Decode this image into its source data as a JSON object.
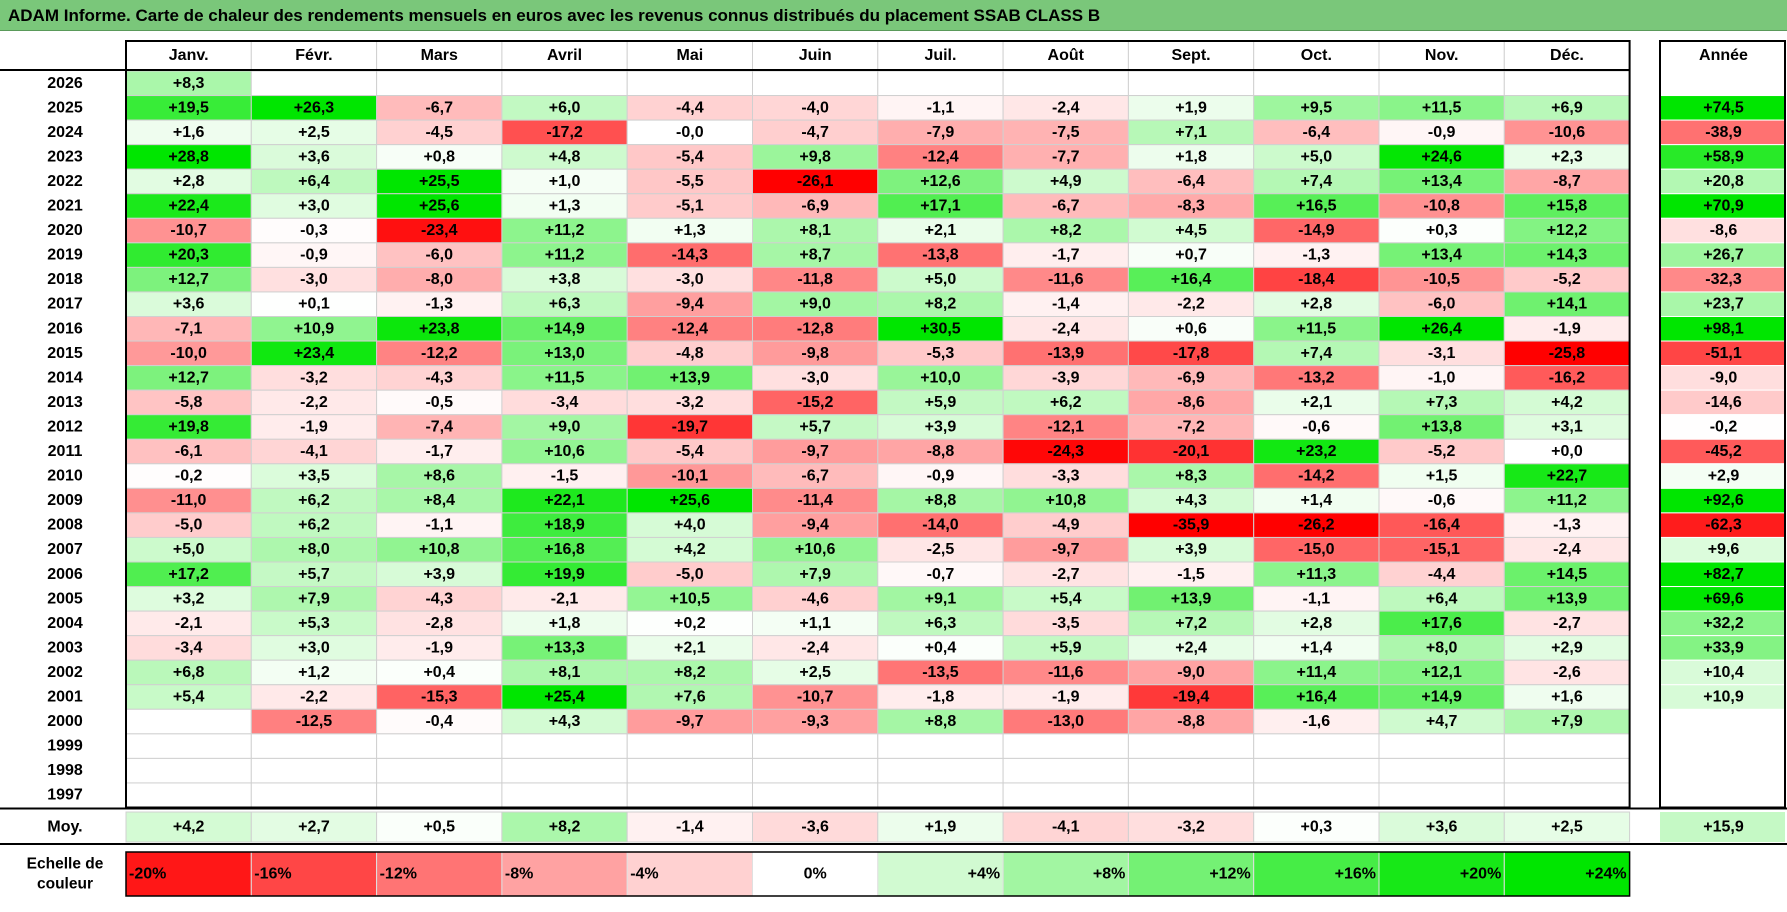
{
  "title": "ADAM Informe. Carte de chaleur des rendements mensuels en euros avec les revenus connus distribués du placement SSAB CLASS B",
  "chart_data": {
    "type": "heatmap",
    "months": [
      "Janv.",
      "Févr.",
      "Mars",
      "Avril",
      "Mai",
      "Juin",
      "Juil.",
      "Août",
      "Sept.",
      "Oct.",
      "Nov.",
      "Déc."
    ],
    "year_header": "Année",
    "rows": [
      {
        "year": "2026",
        "months": [
          "+8,3",
          "",
          "",
          "",
          "",
          "",
          "",
          "",
          "",
          "",
          "",
          ""
        ],
        "annual": ""
      },
      {
        "year": "2025",
        "months": [
          "+19,5",
          "+26,3",
          "-6,7",
          "+6,0",
          "-4,4",
          "-4,0",
          "-1,1",
          "-2,4",
          "+1,9",
          "+9,5",
          "+11,5",
          "+6,9"
        ],
        "annual": "+74,5"
      },
      {
        "year": "2024",
        "months": [
          "+1,6",
          "+2,5",
          "-4,5",
          "-17,2",
          "-0,0",
          "-4,7",
          "-7,9",
          "-7,5",
          "+7,1",
          "-6,4",
          "-0,9",
          "-10,6"
        ],
        "annual": "-38,9"
      },
      {
        "year": "2023",
        "months": [
          "+28,8",
          "+3,6",
          "+0,8",
          "+4,8",
          "-5,4",
          "+9,8",
          "-12,4",
          "-7,7",
          "+1,8",
          "+5,0",
          "+24,6",
          "+2,3"
        ],
        "annual": "+58,9"
      },
      {
        "year": "2022",
        "months": [
          "+2,8",
          "+6,4",
          "+25,5",
          "+1,0",
          "-5,5",
          "-26,1",
          "+12,6",
          "+4,9",
          "-6,4",
          "+7,4",
          "+13,4",
          "-8,7"
        ],
        "annual": "+20,8"
      },
      {
        "year": "2021",
        "months": [
          "+22,4",
          "+3,0",
          "+25,6",
          "+1,3",
          "-5,1",
          "-6,9",
          "+17,1",
          "-6,7",
          "-8,3",
          "+16,5",
          "-10,8",
          "+15,8"
        ],
        "annual": "+70,9"
      },
      {
        "year": "2020",
        "months": [
          "-10,7",
          "-0,3",
          "-23,4",
          "+11,2",
          "+1,3",
          "+8,1",
          "+2,1",
          "+8,2",
          "+4,5",
          "-14,9",
          "+0,3",
          "+12,2"
        ],
        "annual": "-8,6"
      },
      {
        "year": "2019",
        "months": [
          "+20,3",
          "-0,9",
          "-6,0",
          "+11,2",
          "-14,3",
          "+8,7",
          "-13,8",
          "-1,7",
          "+0,7",
          "-1,3",
          "+13,4",
          "+14,3"
        ],
        "annual": "+26,7"
      },
      {
        "year": "2018",
        "months": [
          "+12,7",
          "-3,0",
          "-8,0",
          "+3,8",
          "-3,0",
          "-11,8",
          "+5,0",
          "-11,6",
          "+16,4",
          "-18,4",
          "-10,5",
          "-5,2"
        ],
        "annual": "-32,3"
      },
      {
        "year": "2017",
        "months": [
          "+3,6",
          "+0,1",
          "-1,3",
          "+6,3",
          "-9,4",
          "+9,0",
          "+8,2",
          "-1,4",
          "-2,2",
          "+2,8",
          "-6,0",
          "+14,1"
        ],
        "annual": "+23,7"
      },
      {
        "year": "2016",
        "months": [
          "-7,1",
          "+10,9",
          "+23,8",
          "+14,9",
          "-12,4",
          "-12,8",
          "+30,5",
          "-2,4",
          "+0,6",
          "+11,5",
          "+26,4",
          "-1,9"
        ],
        "annual": "+98,1"
      },
      {
        "year": "2015",
        "months": [
          "-10,0",
          "+23,4",
          "-12,2",
          "+13,0",
          "-4,8",
          "-9,8",
          "-5,3",
          "-13,9",
          "-17,8",
          "+7,4",
          "-3,1",
          "-25,8"
        ],
        "annual": "-51,1"
      },
      {
        "year": "2014",
        "months": [
          "+12,7",
          "-3,2",
          "-4,3",
          "+11,5",
          "+13,9",
          "-3,0",
          "+10,0",
          "-3,9",
          "-6,9",
          "-13,2",
          "-1,0",
          "-16,2"
        ],
        "annual": "-9,0"
      },
      {
        "year": "2013",
        "months": [
          "-5,8",
          "-2,2",
          "-0,5",
          "-3,4",
          "-3,2",
          "-15,2",
          "+5,9",
          "+6,2",
          "-8,6",
          "+2,1",
          "+7,3",
          "+4,2"
        ],
        "annual": "-14,6"
      },
      {
        "year": "2012",
        "months": [
          "+19,8",
          "-1,9",
          "-7,4",
          "+9,0",
          "-19,7",
          "+5,7",
          "+3,9",
          "-12,1",
          "-7,2",
          "-0,6",
          "+13,8",
          "+3,1"
        ],
        "annual": "-0,2"
      },
      {
        "year": "2011",
        "months": [
          "-6,1",
          "-4,1",
          "-1,7",
          "+10,6",
          "-5,4",
          "-9,7",
          "-8,8",
          "-24,3",
          "-20,1",
          "+23,2",
          "-5,2",
          "+0,0"
        ],
        "annual": "-45,2"
      },
      {
        "year": "2010",
        "months": [
          "-0,2",
          "+3,5",
          "+8,6",
          "-1,5",
          "-10,1",
          "-6,7",
          "-0,9",
          "-3,3",
          "+8,3",
          "-14,2",
          "+1,5",
          "+22,7"
        ],
        "annual": "+2,9"
      },
      {
        "year": "2009",
        "months": [
          "-11,0",
          "+6,2",
          "+8,4",
          "+22,1",
          "+25,6",
          "-11,4",
          "+8,8",
          "+10,8",
          "+4,3",
          "+1,4",
          "-0,6",
          "+11,2"
        ],
        "annual": "+92,6"
      },
      {
        "year": "2008",
        "months": [
          "-5,0",
          "+6,2",
          "-1,1",
          "+18,9",
          "+4,0",
          "-9,4",
          "-14,0",
          "-4,9",
          "-35,9",
          "-26,2",
          "-16,4",
          "-1,3"
        ],
        "annual": "-62,3"
      },
      {
        "year": "2007",
        "months": [
          "+5,0",
          "+8,0",
          "+10,8",
          "+16,8",
          "+4,2",
          "+10,6",
          "-2,5",
          "-9,7",
          "+3,9",
          "-15,0",
          "-15,1",
          "-2,4"
        ],
        "annual": "+9,6"
      },
      {
        "year": "2006",
        "months": [
          "+17,2",
          "+5,7",
          "+3,9",
          "+19,9",
          "-5,0",
          "+7,9",
          "-0,7",
          "-2,7",
          "-1,5",
          "+11,3",
          "-4,4",
          "+14,5"
        ],
        "annual": "+82,7"
      },
      {
        "year": "2005",
        "months": [
          "+3,2",
          "+7,9",
          "-4,3",
          "-2,1",
          "+10,5",
          "-4,6",
          "+9,1",
          "+5,4",
          "+13,9",
          "-1,1",
          "+6,4",
          "+13,9"
        ],
        "annual": "+69,6"
      },
      {
        "year": "2004",
        "months": [
          "-2,1",
          "+5,3",
          "-2,8",
          "+1,8",
          "+0,2",
          "+1,1",
          "+6,3",
          "-3,5",
          "+7,2",
          "+2,8",
          "+17,6",
          "-2,7"
        ],
        "annual": "+32,2"
      },
      {
        "year": "2003",
        "months": [
          "-3,4",
          "+3,0",
          "-1,9",
          "+13,3",
          "+2,1",
          "-2,4",
          "+0,4",
          "+5,9",
          "+2,4",
          "+1,4",
          "+8,0",
          "+2,9"
        ],
        "annual": "+33,9"
      },
      {
        "year": "2002",
        "months": [
          "+6,8",
          "+1,2",
          "+0,4",
          "+8,1",
          "+8,2",
          "+2,5",
          "-13,5",
          "-11,6",
          "-9,0",
          "+11,4",
          "+12,1",
          "-2,6"
        ],
        "annual": "+10,4"
      },
      {
        "year": "2001",
        "months": [
          "+5,4",
          "-2,2",
          "-15,3",
          "+25,4",
          "+7,6",
          "-10,7",
          "-1,8",
          "-1,9",
          "-19,4",
          "+16,4",
          "+14,9",
          "+1,6"
        ],
        "annual": "+10,9"
      },
      {
        "year": "2000",
        "months": [
          "",
          "-12,5",
          "-0,4",
          "+4,3",
          "-9,7",
          "-9,3",
          "+8,8",
          "-13,0",
          "-8,8",
          "-1,6",
          "+4,7",
          "+7,9"
        ],
        "annual": ""
      },
      {
        "year": "1999",
        "months": [
          "",
          "",
          "",
          "",
          "",
          "",
          "",
          "",
          "",
          "",
          "",
          ""
        ],
        "annual": ""
      },
      {
        "year": "1998",
        "months": [
          "",
          "",
          "",
          "",
          "",
          "",
          "",
          "",
          "",
          "",
          "",
          ""
        ],
        "annual": ""
      },
      {
        "year": "1997",
        "months": [
          "",
          "",
          "",
          "",
          "",
          "",
          "",
          "",
          "",
          "",
          "",
          ""
        ],
        "annual": ""
      }
    ],
    "average": {
      "label": "Moy.",
      "months": [
        "+4,2",
        "+2,7",
        "+0,5",
        "+8,2",
        "-1,4",
        "-3,6",
        "+1,9",
        "-4,1",
        "-3,2",
        "+0,3",
        "+3,6",
        "+2,5"
      ],
      "annual": "+15,9"
    },
    "scale": {
      "label_line1": "Echelle de",
      "label_line2": "couleur",
      "items": [
        "-20%",
        "-16%",
        "-12%",
        "-8%",
        "-4%",
        "0%",
        "+4%",
        "+8%",
        "+12%",
        "+16%",
        "+20%",
        "+24%"
      ]
    },
    "colors": {
      "title_bg": "#7ac77a",
      "neg_strong": "#ff0000",
      "pos_strong": "#00e600",
      "neutral": "#ffffff"
    }
  }
}
